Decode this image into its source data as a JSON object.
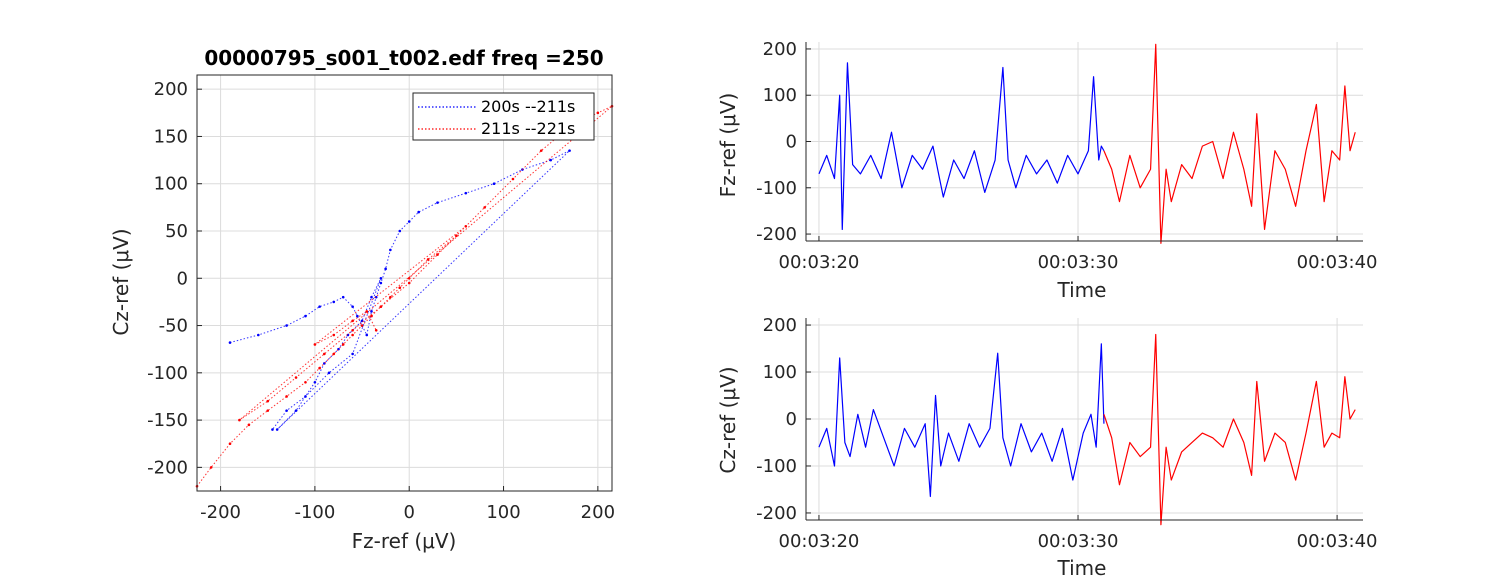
{
  "chart_data": [
    {
      "type": "scatter",
      "title": "00000795_s001_t002.edf freq =250",
      "xlabel": "Fz-ref (μV)",
      "ylabel": "Cz-ref (μV)",
      "xlim": [
        -225,
        215
      ],
      "ylim": [
        -225,
        215
      ],
      "xticks": [
        -200,
        -100,
        0,
        100,
        200
      ],
      "yticks": [
        -200,
        -150,
        -100,
        -50,
        0,
        50,
        100,
        150,
        200
      ],
      "grid": true,
      "legend_position": "top-right",
      "series": [
        {
          "name": "200s --211s",
          "color": "#0000ff",
          "x": [
            -190,
            -160,
            -130,
            -110,
            -95,
            -80,
            -70,
            -60,
            -55,
            -50,
            -45,
            -40,
            -35,
            -30,
            -25,
            -20,
            -10,
            0,
            10,
            30,
            60,
            90,
            120,
            150,
            170,
            -140,
            -120,
            -100,
            -90,
            -75,
            -65,
            -50,
            -40,
            -30,
            -60,
            -85,
            -110,
            -130,
            -145
          ],
          "y": [
            -68,
            -60,
            -50,
            -40,
            -30,
            -25,
            -20,
            -30,
            -40,
            -50,
            -60,
            -35,
            -20,
            -5,
            10,
            30,
            50,
            60,
            70,
            80,
            90,
            100,
            115,
            125,
            135,
            -160,
            -140,
            -110,
            -90,
            -75,
            -60,
            -45,
            -20,
            0,
            -80,
            -100,
            -125,
            -140,
            -160
          ]
        },
        {
          "name": "211s --221s",
          "color": "#ff0000",
          "x": [
            -225,
            -210,
            -190,
            -170,
            -150,
            -130,
            -110,
            -95,
            -80,
            -70,
            -60,
            -50,
            -40,
            -30,
            -20,
            -10,
            0,
            20,
            50,
            80,
            110,
            140,
            170,
            200,
            215,
            -180,
            -150,
            -120,
            -90,
            -60,
            -30,
            0,
            30,
            60,
            -100,
            -80,
            -60,
            -45,
            -35
          ],
          "y": [
            -220,
            -200,
            -175,
            -155,
            -140,
            -125,
            -110,
            -95,
            -80,
            -70,
            -60,
            -50,
            -40,
            -30,
            -20,
            -10,
            0,
            20,
            45,
            75,
            105,
            135,
            160,
            175,
            182,
            -150,
            -130,
            -105,
            -80,
            -55,
            -30,
            -5,
            25,
            55,
            -70,
            -60,
            -45,
            -35,
            -55
          ]
        }
      ]
    },
    {
      "type": "line",
      "xlabel": "Time",
      "ylabel": "Fz-ref (μV)",
      "xlim": [
        199.5,
        221
      ],
      "ylim": [
        -215,
        215
      ],
      "xticks": [
        200,
        210,
        220
      ],
      "xtick_labels": [
        "00:03:20",
        "00:03:30",
        "00:03:40"
      ],
      "yticks": [
        -200,
        -100,
        0,
        100,
        200
      ],
      "grid": true,
      "series": [
        {
          "color": "#0000ff",
          "x": [
            200.0,
            200.3,
            200.6,
            200.8,
            200.9,
            201.1,
            201.3,
            201.6,
            202.0,
            202.4,
            202.8,
            203.2,
            203.6,
            204.0,
            204.4,
            204.8,
            205.2,
            205.6,
            206.0,
            206.4,
            206.8,
            207.1,
            207.3,
            207.6,
            208.0,
            208.4,
            208.8,
            209.2,
            209.6,
            210.0,
            210.4,
            210.6,
            210.8,
            210.9,
            211.0
          ],
          "y": [
            -70,
            -30,
            -80,
            100,
            -190,
            170,
            -50,
            -70,
            -30,
            -80,
            20,
            -100,
            -30,
            -60,
            -10,
            -120,
            -40,
            -80,
            -20,
            -110,
            -40,
            160,
            -40,
            -100,
            -30,
            -70,
            -40,
            -90,
            -30,
            -70,
            -20,
            140,
            -40,
            -10,
            -20
          ]
        },
        {
          "color": "#ff0000",
          "x": [
            211.0,
            211.3,
            211.6,
            212.0,
            212.4,
            212.8,
            213.0,
            213.2,
            213.4,
            213.6,
            214.0,
            214.4,
            214.8,
            215.2,
            215.6,
            216.0,
            216.4,
            216.7,
            216.9,
            217.2,
            217.6,
            218.0,
            218.4,
            218.8,
            219.2,
            219.5,
            219.8,
            220.1,
            220.3,
            220.5,
            220.7
          ],
          "y": [
            -20,
            -60,
            -130,
            -30,
            -100,
            -60,
            210,
            -220,
            -60,
            -130,
            -50,
            -80,
            -10,
            0,
            -80,
            20,
            -60,
            -140,
            60,
            -190,
            -20,
            -60,
            -140,
            -20,
            80,
            -130,
            -20,
            -40,
            120,
            -20,
            20
          ]
        }
      ]
    },
    {
      "type": "line",
      "xlabel": "Time",
      "ylabel": "Cz-ref (μV)",
      "xlim": [
        199.5,
        221
      ],
      "ylim": [
        -215,
        215
      ],
      "xticks": [
        200,
        210,
        220
      ],
      "xtick_labels": [
        "00:03:20",
        "00:03:30",
        "00:03:40"
      ],
      "yticks": [
        -200,
        -100,
        0,
        100,
        200
      ],
      "grid": true,
      "series": [
        {
          "color": "#0000ff",
          "x": [
            200.0,
            200.3,
            200.6,
            200.8,
            201.0,
            201.2,
            201.5,
            201.8,
            202.1,
            202.5,
            202.9,
            203.3,
            203.7,
            204.1,
            204.3,
            204.5,
            204.7,
            205.0,
            205.4,
            205.8,
            206.2,
            206.6,
            206.9,
            207.1,
            207.4,
            207.8,
            208.2,
            208.6,
            209.0,
            209.4,
            209.8,
            210.2,
            210.5,
            210.7,
            210.9,
            211.0
          ],
          "y": [
            -60,
            -20,
            -100,
            130,
            -50,
            -80,
            10,
            -60,
            20,
            -40,
            -100,
            -20,
            -60,
            -10,
            -165,
            50,
            -100,
            -30,
            -90,
            -10,
            -60,
            -20,
            140,
            -40,
            -100,
            -10,
            -70,
            -30,
            -90,
            -20,
            -130,
            -30,
            10,
            -60,
            160,
            -10
          ]
        },
        {
          "color": "#ff0000",
          "x": [
            211.0,
            211.3,
            211.6,
            212.0,
            212.4,
            212.8,
            213.0,
            213.2,
            213.4,
            213.6,
            214.0,
            214.4,
            214.8,
            215.2,
            215.6,
            216.0,
            216.4,
            216.7,
            216.9,
            217.2,
            217.6,
            218.0,
            218.4,
            218.8,
            219.2,
            219.5,
            219.8,
            220.1,
            220.3,
            220.5,
            220.7
          ],
          "y": [
            10,
            -40,
            -140,
            -50,
            -80,
            -60,
            180,
            -225,
            -60,
            -130,
            -70,
            -50,
            -30,
            -40,
            -60,
            0,
            -50,
            -120,
            80,
            -90,
            -30,
            -50,
            -130,
            -30,
            80,
            -60,
            -30,
            -40,
            90,
            0,
            20
          ]
        }
      ]
    }
  ]
}
